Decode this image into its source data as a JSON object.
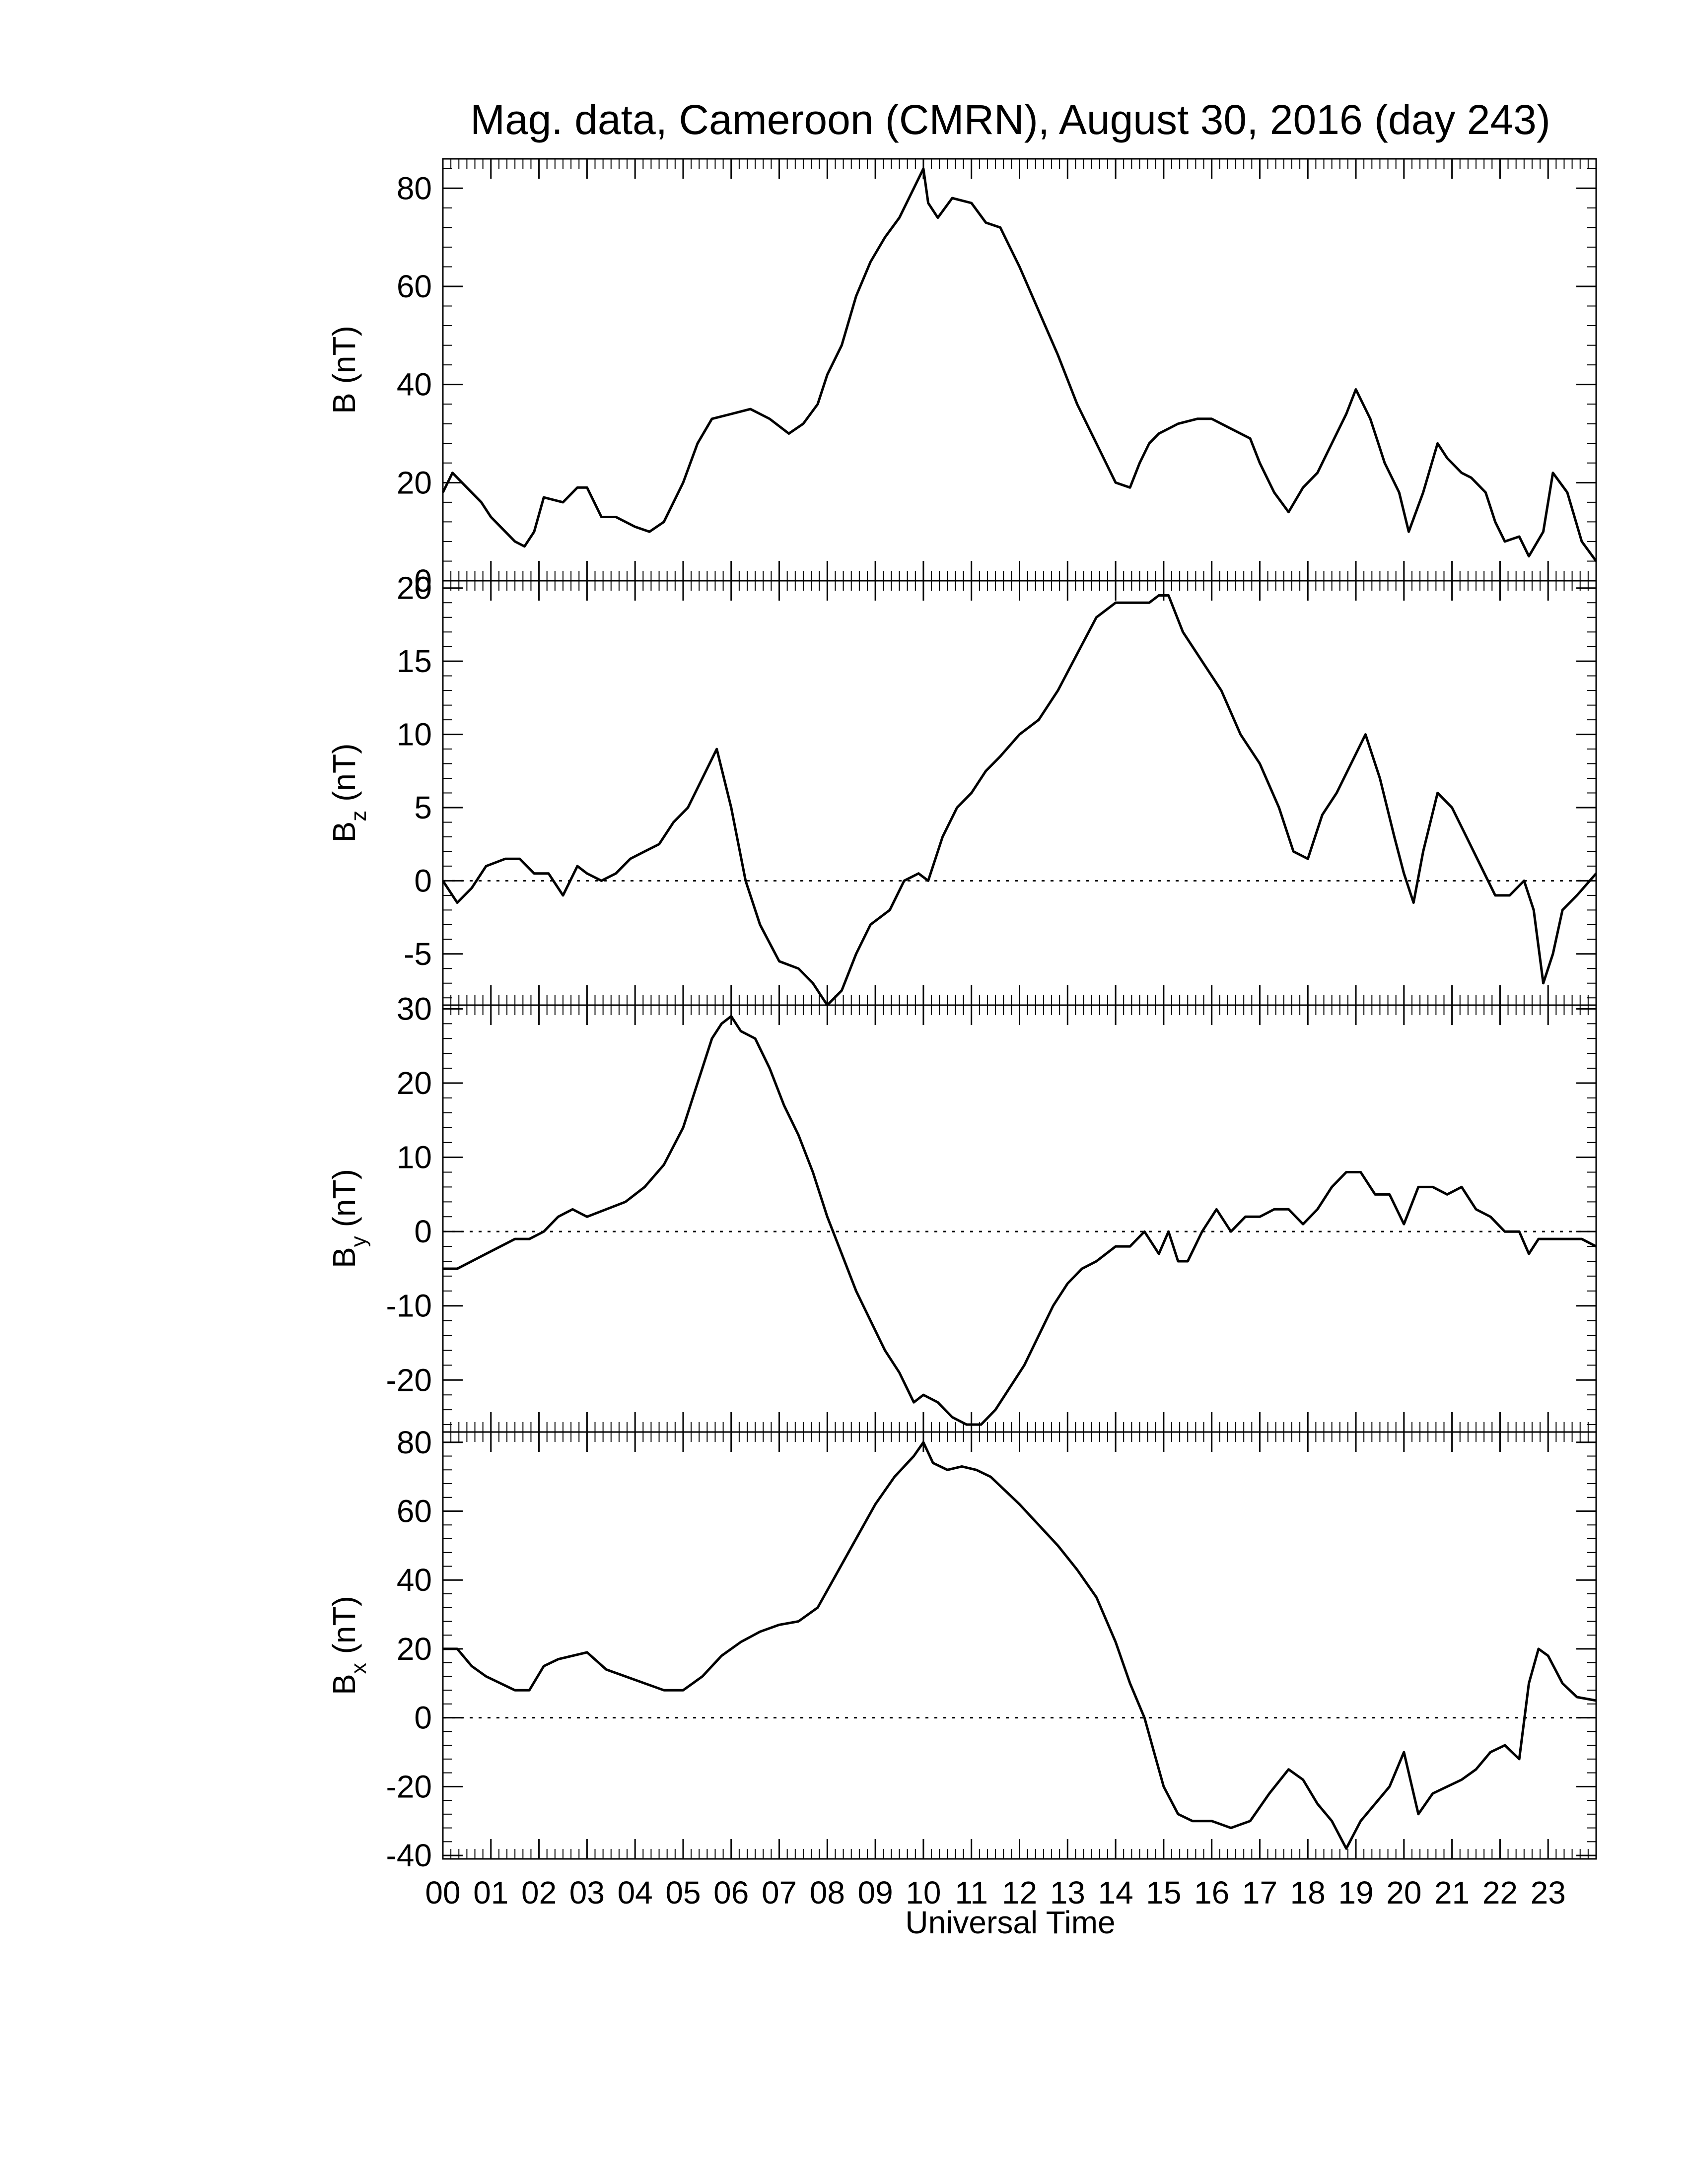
{
  "chart_data": {
    "type": "line",
    "title": "Mag. data, Cameroon (CMRN), August 30, 2016 (day 243)",
    "xlabel": "Universal Time",
    "x_range_hours": [
      0,
      24
    ],
    "x_tick_labels": [
      "00",
      "01",
      "02",
      "03",
      "04",
      "05",
      "06",
      "07",
      "08",
      "09",
      "10",
      "11",
      "12",
      "13",
      "14",
      "15",
      "16",
      "17",
      "18",
      "19",
      "20",
      "21",
      "22",
      "23"
    ],
    "grid": false,
    "line_color": "#000000",
    "zero_line_color": "#000000",
    "panels": [
      {
        "name": "B",
        "ylabel": "B (nT)",
        "ylabel_main": "B (nT)",
        "ylabel_sub": "",
        "ylim": [
          0,
          86
        ],
        "yticks": [
          0,
          20,
          40,
          60,
          80
        ],
        "zero_line": false,
        "x": [
          0,
          0.2,
          0.5,
          0.8,
          1.0,
          1.2,
          1.5,
          1.7,
          1.9,
          2.1,
          2.5,
          2.8,
          3.0,
          3.3,
          3.6,
          4.0,
          4.3,
          4.6,
          5.0,
          5.3,
          5.6,
          6.0,
          6.4,
          6.8,
          7.2,
          7.5,
          7.8,
          8.0,
          8.3,
          8.6,
          8.9,
          9.2,
          9.5,
          9.8,
          10.0,
          10.1,
          10.3,
          10.6,
          11.0,
          11.3,
          11.6,
          12.0,
          12.4,
          12.8,
          13.2,
          13.6,
          14.0,
          14.3,
          14.5,
          14.7,
          14.9,
          15.1,
          15.3,
          15.7,
          16.0,
          16.4,
          16.8,
          17.0,
          17.3,
          17.6,
          17.9,
          18.2,
          18.5,
          18.8,
          19.0,
          19.3,
          19.6,
          19.9,
          20.1,
          20.4,
          20.7,
          20.9,
          21.2,
          21.4,
          21.7,
          21.9,
          22.1,
          22.4,
          22.6,
          22.9,
          23.1,
          23.4,
          23.7,
          24.0
        ],
        "y": [
          18,
          22,
          19,
          16,
          13,
          11,
          8,
          7,
          10,
          17,
          16,
          19,
          19,
          13,
          13,
          11,
          10,
          12,
          20,
          28,
          33,
          34,
          35,
          33,
          30,
          32,
          36,
          42,
          48,
          58,
          65,
          70,
          74,
          80,
          84,
          77,
          74,
          78,
          77,
          73,
          72,
          64,
          55,
          46,
          36,
          28,
          20,
          19,
          24,
          28,
          30,
          31,
          32,
          33,
          33,
          31,
          29,
          24,
          18,
          14,
          19,
          22,
          28,
          34,
          39,
          33,
          24,
          18,
          10,
          18,
          28,
          25,
          22,
          21,
          18,
          12,
          8,
          9,
          5,
          10,
          22,
          18,
          8,
          4
        ]
      },
      {
        "name": "Bz",
        "ylabel": "Bz (nT)",
        "ylabel_main": "B",
        "ylabel_sub": "z",
        "ylim": [
          -8.5,
          20.5
        ],
        "yticks": [
          -5,
          0,
          5,
          10,
          15,
          20
        ],
        "zero_line": true,
        "x": [
          0,
          0.3,
          0.6,
          0.9,
          1.3,
          1.6,
          1.9,
          2.2,
          2.5,
          2.8,
          3.0,
          3.3,
          3.6,
          3.9,
          4.2,
          4.5,
          4.8,
          5.1,
          5.4,
          5.7,
          6.0,
          6.3,
          6.6,
          7.0,
          7.4,
          7.7,
          8.0,
          8.3,
          8.6,
          8.9,
          9.3,
          9.6,
          9.9,
          10.1,
          10.4,
          10.7,
          11.0,
          11.3,
          11.6,
          12.0,
          12.4,
          12.8,
          13.2,
          13.6,
          14.0,
          14.4,
          14.7,
          14.9,
          15.1,
          15.4,
          15.8,
          16.2,
          16.6,
          17.0,
          17.4,
          17.7,
          18.0,
          18.3,
          18.6,
          18.9,
          19.2,
          19.5,
          19.8,
          20.0,
          20.2,
          20.4,
          20.7,
          21.0,
          21.3,
          21.6,
          21.9,
          22.2,
          22.5,
          22.7,
          22.9,
          23.1,
          23.3,
          23.6,
          24.0
        ],
        "y": [
          0,
          -1.5,
          -0.5,
          1,
          1.5,
          1.5,
          0.5,
          0.5,
          -1,
          1,
          0.5,
          0,
          0.5,
          1.5,
          2,
          2.5,
          4,
          5,
          7,
          9,
          5,
          0,
          -3,
          -5.5,
          -6,
          -7,
          -8.5,
          -7.5,
          -5,
          -3,
          -2,
          0,
          0.5,
          0,
          3,
          5,
          6,
          7.5,
          8.5,
          10,
          11,
          13,
          15.5,
          18,
          19,
          19,
          19,
          19.5,
          19.5,
          17,
          15,
          13,
          10,
          8,
          5,
          2,
          1.5,
          4.5,
          6,
          8,
          10,
          7,
          3,
          0.5,
          -1.5,
          2,
          6,
          5,
          3,
          1,
          -1,
          -1,
          0,
          -2,
          -7,
          -5,
          -2,
          -1,
          0.5
        ]
      },
      {
        "name": "By",
        "ylabel": "By (nT)",
        "ylabel_main": "B",
        "ylabel_sub": "y",
        "ylim": [
          -27,
          30.5
        ],
        "yticks": [
          -20,
          -10,
          0,
          10,
          20,
          30
        ],
        "zero_line": true,
        "x": [
          0,
          0.3,
          0.6,
          0.9,
          1.2,
          1.5,
          1.8,
          2.1,
          2.4,
          2.7,
          3.0,
          3.4,
          3.8,
          4.2,
          4.6,
          5.0,
          5.3,
          5.6,
          5.8,
          6.0,
          6.2,
          6.5,
          6.8,
          7.1,
          7.4,
          7.7,
          8.0,
          8.3,
          8.6,
          8.9,
          9.2,
          9.5,
          9.8,
          10.0,
          10.3,
          10.6,
          10.9,
          11.2,
          11.5,
          11.8,
          12.1,
          12.4,
          12.7,
          13.0,
          13.3,
          13.6,
          14.0,
          14.3,
          14.6,
          14.9,
          15.1,
          15.3,
          15.5,
          15.8,
          16.1,
          16.4,
          16.7,
          17.0,
          17.3,
          17.6,
          17.9,
          18.2,
          18.5,
          18.8,
          19.1,
          19.4,
          19.7,
          20.0,
          20.3,
          20.6,
          20.9,
          21.2,
          21.5,
          21.8,
          22.1,
          22.4,
          22.6,
          22.8,
          23.1,
          23.4,
          23.7,
          24.0
        ],
        "y": [
          -5,
          -5,
          -4,
          -3,
          -2,
          -1,
          -1,
          0,
          2,
          3,
          2,
          3,
          4,
          6,
          9,
          14,
          20,
          26,
          28,
          29,
          27,
          26,
          22,
          17,
          13,
          8,
          2,
          -3,
          -8,
          -12,
          -16,
          -19,
          -23,
          -22,
          -23,
          -25,
          -26,
          -26,
          -24,
          -21,
          -18,
          -14,
          -10,
          -7,
          -5,
          -4,
          -2,
          -2,
          0,
          -3,
          0,
          -4,
          -4,
          0,
          3,
          0,
          2,
          2,
          3,
          3,
          1,
          3,
          6,
          8,
          8,
          5,
          5,
          1,
          6,
          6,
          5,
          6,
          3,
          2,
          0,
          0,
          -3,
          -1,
          -1,
          -1,
          -1,
          -2
        ]
      },
      {
        "name": "Bx",
        "ylabel": "Bx (nT)",
        "ylabel_main": "B",
        "ylabel_sub": "x",
        "ylim": [
          -41,
          83
        ],
        "yticks": [
          -40,
          -20,
          0,
          20,
          40,
          60,
          80
        ],
        "zero_line": true,
        "x": [
          0,
          0.3,
          0.6,
          0.9,
          1.2,
          1.5,
          1.8,
          2.1,
          2.4,
          2.7,
          3.0,
          3.4,
          3.8,
          4.2,
          4.6,
          5.0,
          5.4,
          5.8,
          6.2,
          6.6,
          7.0,
          7.4,
          7.8,
          8.2,
          8.6,
          9.0,
          9.4,
          9.8,
          10.0,
          10.2,
          10.5,
          10.8,
          11.1,
          11.4,
          11.7,
          12.0,
          12.4,
          12.8,
          13.2,
          13.6,
          14.0,
          14.3,
          14.6,
          14.8,
          15.0,
          15.3,
          15.6,
          16.0,
          16.4,
          16.8,
          17.2,
          17.6,
          17.9,
          18.2,
          18.5,
          18.8,
          19.1,
          19.4,
          19.7,
          20.0,
          20.3,
          20.6,
          20.9,
          21.2,
          21.5,
          21.8,
          22.1,
          22.4,
          22.6,
          22.8,
          23.0,
          23.3,
          23.6,
          24.0
        ],
        "y": [
          20,
          20,
          15,
          12,
          10,
          8,
          8,
          15,
          17,
          18,
          19,
          14,
          12,
          10,
          8,
          8,
          12,
          18,
          22,
          25,
          27,
          28,
          32,
          42,
          52,
          62,
          70,
          76,
          80,
          74,
          72,
          73,
          72,
          70,
          66,
          62,
          56,
          50,
          43,
          35,
          22,
          10,
          0,
          -10,
          -20,
          -28,
          -30,
          -30,
          -32,
          -30,
          -22,
          -15,
          -18,
          -25,
          -30,
          -38,
          -30,
          -25,
          -20,
          -10,
          -28,
          -22,
          -20,
          -18,
          -15,
          -10,
          -8,
          -12,
          10,
          20,
          18,
          10,
          6,
          5
        ]
      }
    ]
  }
}
